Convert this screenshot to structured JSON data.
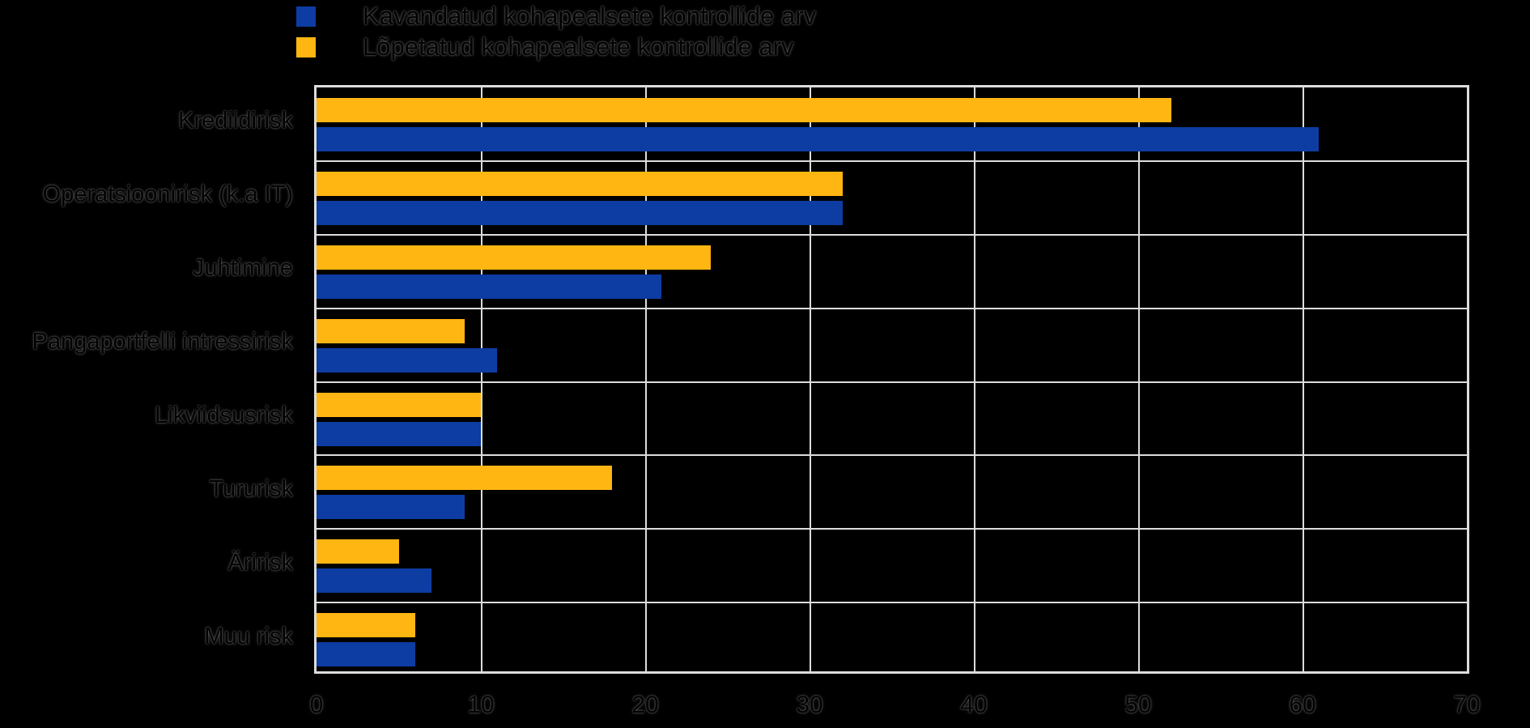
{
  "figure": {
    "background": "#000000",
    "plot_background": "#000000",
    "grid_color": "#dcdcdc",
    "text_color": "#000000"
  },
  "legend": {
    "items": [
      {
        "label": "Kavandatud kohapealsete kontrollide arv",
        "color": "#0d3da2"
      },
      {
        "label": "Lõpetatud kohapealsete kontrollide arv",
        "color": "#ffb612"
      }
    ]
  },
  "chart_data": {
    "type": "bar",
    "orientation": "horizontal",
    "title": "",
    "xlabel": "",
    "ylabel": "",
    "categories": [
      "Krediidirisk",
      "Operatsioonirisk (k.a IT)",
      "Juhtimine",
      "Pangaportfelli intressirisk",
      "Likviidsusrisk",
      "Tururisk",
      "Äririsk",
      "Muu risk"
    ],
    "series": [
      {
        "name": "Kavandatud kohapealsete kontrollide arv",
        "color": "#0d3da2",
        "values": [
          61,
          32,
          21,
          11,
          10,
          9,
          7,
          6
        ]
      },
      {
        "name": "Lõpetatud kohapealsete kontrollide arv",
        "color": "#ffb612",
        "values": [
          52,
          32,
          24,
          9,
          10,
          18,
          5,
          6
        ]
      }
    ],
    "xlim": [
      0,
      70
    ],
    "x_ticks": [
      0,
      10,
      20,
      30,
      40,
      50,
      60,
      70
    ],
    "grid": true,
    "legend_position": "top-left",
    "bar_group_order_top_to_bottom": [
      "Lõpetatud kohapealsete kontrollide arv",
      "Kavandatud kohapealsete kontrollide arv"
    ]
  }
}
